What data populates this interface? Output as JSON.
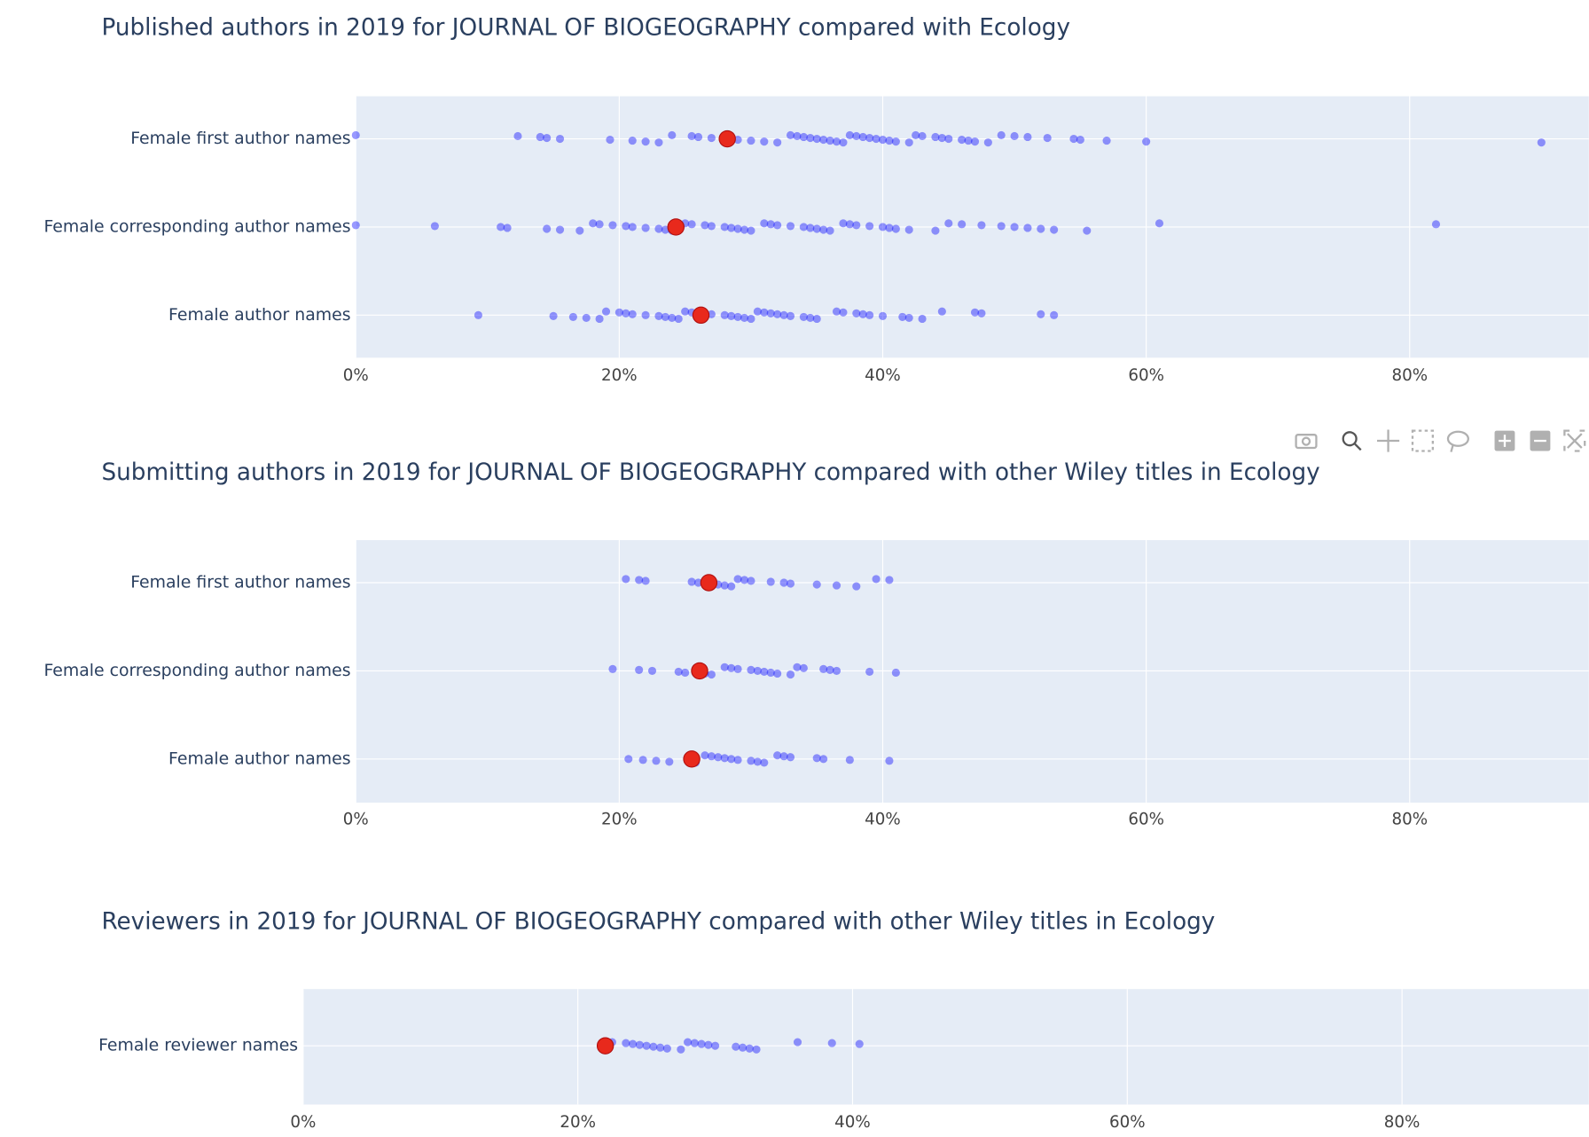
{
  "chart_data": [
    {
      "type": "strip",
      "title": "Published authors in 2019 for JOURNAL OF BIOGEOGRAPHY compared with Ecology",
      "categories": [
        "Female first author names",
        "Female corresponding author names",
        "Female author names"
      ],
      "series": [
        {
          "color": "#0000ff",
          "values": [
            [
              0,
              12.3,
              14,
              14.5,
              15.5,
              19.3,
              21,
              22,
              23,
              24,
              25.5,
              26,
              27,
              28,
              29,
              30,
              31,
              32,
              33,
              33.5,
              34,
              34.5,
              35,
              35.5,
              36,
              36.5,
              37,
              37.5,
              38,
              38.5,
              39,
              39.5,
              40,
              40.5,
              41,
              42,
              42.5,
              43,
              44,
              44.5,
              45,
              46,
              46.5,
              47,
              48,
              49,
              50,
              51,
              52.5,
              54.5,
              55,
              57,
              60,
              90
            ],
            [
              0,
              6,
              11,
              11.5,
              14.5,
              15.5,
              17,
              18,
              18.5,
              19.5,
              20.5,
              21,
              22,
              23,
              23.5,
              24,
              25,
              25.5,
              26.5,
              27,
              28,
              28.5,
              29,
              29.5,
              30,
              31,
              31.5,
              32,
              33,
              34,
              34.5,
              35,
              35.5,
              36,
              37,
              37.5,
              38,
              39,
              40,
              40.5,
              41,
              42,
              44,
              45,
              46,
              47.5,
              49,
              50,
              51,
              52,
              53,
              55.5,
              61,
              82
            ],
            [
              9.3,
              15,
              16.5,
              17.5,
              18.5,
              19,
              20,
              20.5,
              21,
              22,
              23,
              23.5,
              24,
              24.5,
              25,
              25.5,
              26.5,
              27,
              28,
              28.5,
              29,
              29.5,
              30,
              30.5,
              31,
              31.5,
              32,
              32.5,
              33,
              34,
              34.5,
              35,
              36.5,
              37,
              38,
              38.5,
              39,
              40,
              41.5,
              42,
              43,
              44.5,
              47,
              47.5,
              52,
              53
            ]
          ]
        },
        {
          "color": "#e8291c",
          "values": [
            28.2,
            24.3,
            26.2
          ]
        }
      ],
      "xlim": [
        0,
        93.6
      ],
      "xticks": [
        {
          "value": 0,
          "label": "0%"
        },
        {
          "value": 20,
          "label": "20%"
        },
        {
          "value": 40,
          "label": "40%"
        },
        {
          "value": 60,
          "label": "60%"
        },
        {
          "value": 80,
          "label": "80%"
        }
      ],
      "grid": true
    },
    {
      "type": "strip",
      "title": "Submitting authors in 2019 for JOURNAL OF BIOGEOGRAPHY compared with other Wiley titles in Ecology",
      "categories": [
        "Female first author names",
        "Female corresponding author names",
        "Female author names"
      ],
      "series": [
        {
          "color": "#0000ff",
          "values": [
            [
              20.5,
              21.5,
              22,
              25.5,
              26,
              27,
              27.5,
              28,
              28.5,
              29,
              29.5,
              30,
              31.5,
              32.5,
              33,
              35,
              36.5,
              38,
              39.5,
              40.5
            ],
            [
              19.5,
              21.5,
              22.5,
              24.5,
              25,
              26.5,
              27,
              28,
              28.5,
              29,
              30,
              30.5,
              31,
              31.5,
              32,
              33,
              33.5,
              34,
              35.5,
              36,
              36.5,
              39,
              41
            ],
            [
              20.7,
              21.8,
              22.8,
              23.8,
              25.8,
              26.5,
              27,
              27.5,
              28,
              28.5,
              29,
              30,
              30.5,
              31,
              32,
              32.5,
              33,
              35,
              35.5,
              37.5,
              40.5
            ]
          ]
        },
        {
          "color": "#e8291c",
          "values": [
            26.8,
            26.1,
            25.5
          ]
        }
      ],
      "xlim": [
        0,
        93.6
      ],
      "xticks": [
        {
          "value": 0,
          "label": "0%"
        },
        {
          "value": 20,
          "label": "20%"
        },
        {
          "value": 40,
          "label": "40%"
        },
        {
          "value": 60,
          "label": "60%"
        },
        {
          "value": 80,
          "label": "80%"
        }
      ],
      "grid": true
    },
    {
      "type": "strip",
      "title": "Reviewers in 2019 for JOURNAL OF BIOGEOGRAPHY compared with other Wiley titles in Ecology",
      "categories": [
        "Female reviewer names"
      ],
      "series": [
        {
          "color": "#0000ff",
          "values": [
            [
              22.5,
              23.5,
              24,
              24.5,
              25,
              25.5,
              26,
              26.5,
              27.5,
              28,
              28.5,
              29,
              29.5,
              30,
              31.5,
              32,
              32.5,
              33,
              36,
              38.5,
              40.5
            ]
          ]
        },
        {
          "color": "#e8291c",
          "values": [
            22
          ]
        }
      ],
      "xlim": [
        0,
        93.6
      ],
      "xticks": [
        {
          "value": 0,
          "label": "0%"
        },
        {
          "value": 20,
          "label": "20%"
        },
        {
          "value": 40,
          "label": "40%"
        },
        {
          "value": 60,
          "label": "60%"
        },
        {
          "value": 80,
          "label": "80%"
        }
      ],
      "grid": true
    }
  ]
}
